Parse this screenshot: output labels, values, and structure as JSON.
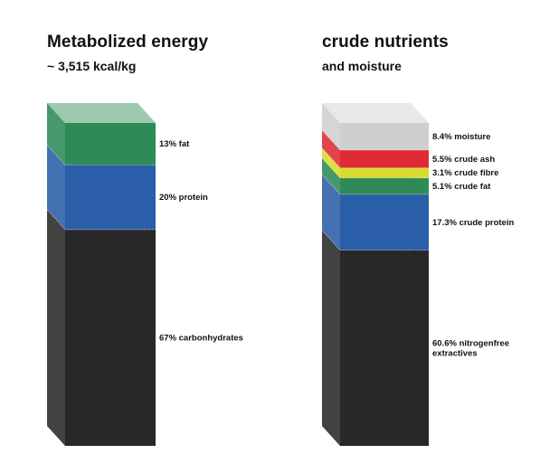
{
  "chart_data": [
    {
      "type": "stacked-column-3d",
      "title": "Metabolized energy",
      "subtitle": "~ 3,515 kcal/kg",
      "unit": "%",
      "segments": [
        {
          "label": "67% carbonhydrates",
          "value": 67,
          "color": "#282828"
        },
        {
          "label": "20% protein",
          "value": 20,
          "color": "#2b5ea8"
        },
        {
          "label": "13% fat",
          "value": 13,
          "color": "#2e8b57"
        }
      ]
    },
    {
      "type": "stacked-column-3d",
      "title": "crude nutrients",
      "subtitle": "and moisture",
      "unit": "%",
      "segments": [
        {
          "label": "60.6% nitrogenfree extractives",
          "value": 60.6,
          "color": "#282828"
        },
        {
          "label": "17.3% crude protein",
          "value": 17.3,
          "color": "#2b5ea8"
        },
        {
          "label": "5.1% crude fat",
          "value": 5.1,
          "color": "#2e8b57"
        },
        {
          "label": "3.1% crude fibre",
          "value": 3.1,
          "color": "#d9dd2a"
        },
        {
          "label": "5.5% crude ash",
          "value": 5.5,
          "color": "#e02a36"
        },
        {
          "label": "8.4% moisture",
          "value": 8.4,
          "color": "#cfcfcf"
        }
      ]
    }
  ]
}
